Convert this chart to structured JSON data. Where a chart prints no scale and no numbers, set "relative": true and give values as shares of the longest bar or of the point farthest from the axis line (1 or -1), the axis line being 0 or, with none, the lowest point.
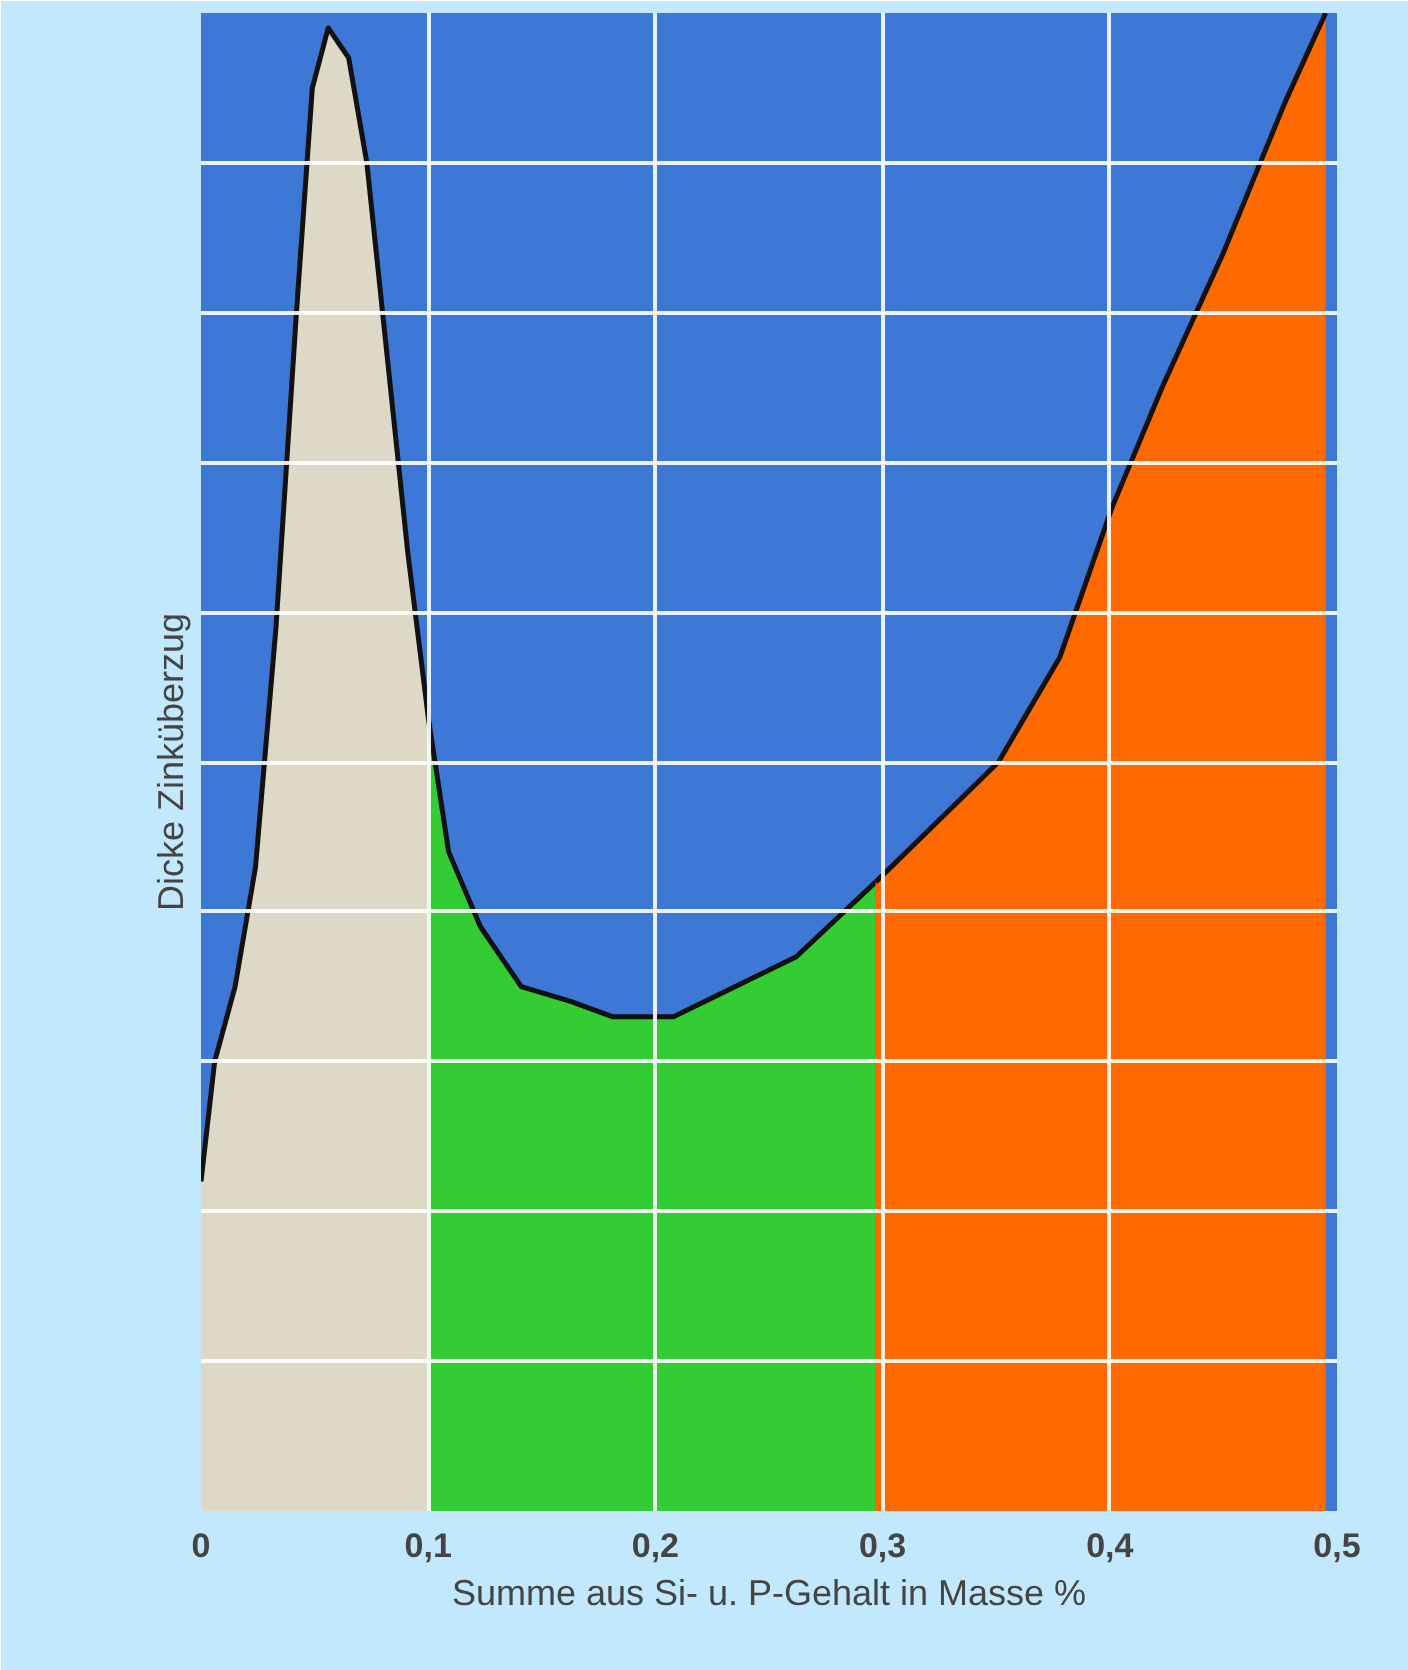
{
  "chart_data": {
    "type": "area",
    "relative": true,
    "xlabel": "Summe aus Si- u. P-Gehalt in Masse %",
    "ylabel": "Dicke Zinküberzug",
    "xlim": [
      0,
      0.5
    ],
    "xticks": [
      0,
      {
        "value": 0.1,
        "label": "0,1"
      },
      {
        "value": 0.2,
        "label": "0,2"
      },
      {
        "value": 0.3,
        "label": "0,3"
      },
      {
        "value": 0.4,
        "label": "0,4"
      },
      {
        "value": 0.5,
        "label": "0,5"
      }
    ],
    "grid": true,
    "series": [
      {
        "color": "#ddd9c6",
        "x": [
          0,
          0.006,
          0.015,
          0.024,
          0.033,
          0.042,
          0.049,
          0.056,
          0.065,
          0.073,
          0.082,
          0.091,
          0.1
        ],
        "values": [
          0.22,
          0.3,
          0.35,
          0.43,
          0.59,
          0.8,
          0.95,
          0.99,
          0.97,
          0.9,
          0.77,
          0.64,
          0.53
        ]
      },
      {
        "color": "#33cc33",
        "x": [
          0.1,
          0.109,
          0.123,
          0.141,
          0.163,
          0.181,
          0.208,
          0.235,
          0.262,
          0.297
        ],
        "values": [
          0.53,
          0.44,
          0.39,
          0.35,
          0.34,
          0.33,
          0.33,
          0.35,
          0.37,
          0.42
        ]
      },
      {
        "color": "#ff6a00",
        "x": [
          0.297,
          0.324,
          0.351,
          0.378,
          0.401,
          0.423,
          0.45,
          0.477,
          0.495
        ],
        "values": [
          0.42,
          0.46,
          0.5,
          0.57,
          0.67,
          0.75,
          0.84,
          0.94,
          1
        ]
      }
    ]
  }
}
